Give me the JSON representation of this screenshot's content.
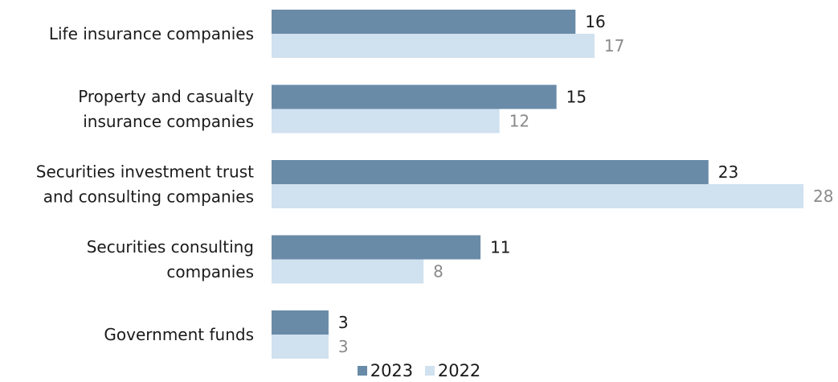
{
  "chart_data": {
    "type": "bar",
    "orientation": "horizontal",
    "categories": [
      [
        "Life insurance companies"
      ],
      [
        "Property and casualty",
        "insurance companies"
      ],
      [
        "Securities investment trust",
        "and consulting companies"
      ],
      [
        "Securities consulting",
        "companies"
      ],
      [
        "Government funds"
      ]
    ],
    "series": [
      {
        "name": "2023",
        "values": [
          16,
          15,
          23,
          11,
          3
        ],
        "color": "#6a8ba8",
        "label_color": "#1a1a1a"
      },
      {
        "name": "2022",
        "values": [
          17,
          12,
          28,
          8,
          3
        ],
        "color": "#d0e1ef",
        "label_color": "#8a8a8a"
      }
    ],
    "title": "",
    "xlabel": "",
    "ylabel": "",
    "xlim": [
      0,
      28
    ],
    "grid": false,
    "legend_position": "bottom-center",
    "data_labels": true
  }
}
